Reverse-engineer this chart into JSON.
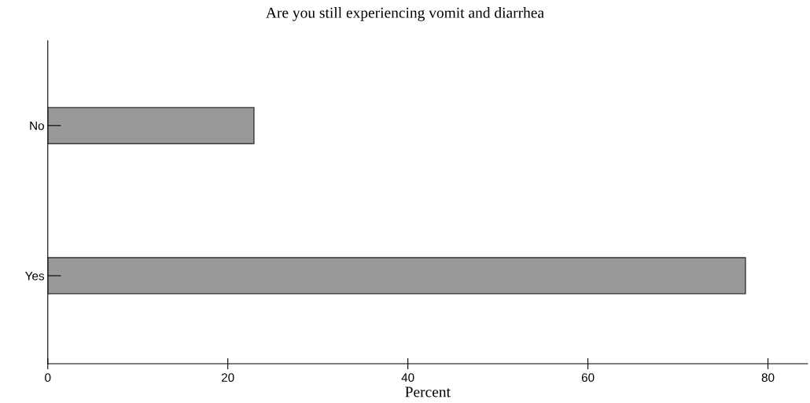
{
  "chart_data": {
    "type": "bar",
    "orientation": "horizontal",
    "title": "Are you still experiencing vomit and diarrhea",
    "xlabel": "Percent",
    "categories": [
      "No",
      "Yes"
    ],
    "values": [
      22.9,
      77.5
    ],
    "color": "#999999",
    "xlim": [
      0,
      84.4
    ],
    "xticks": [
      0,
      20,
      40,
      60,
      80
    ],
    "grid": false,
    "legend": false
  }
}
